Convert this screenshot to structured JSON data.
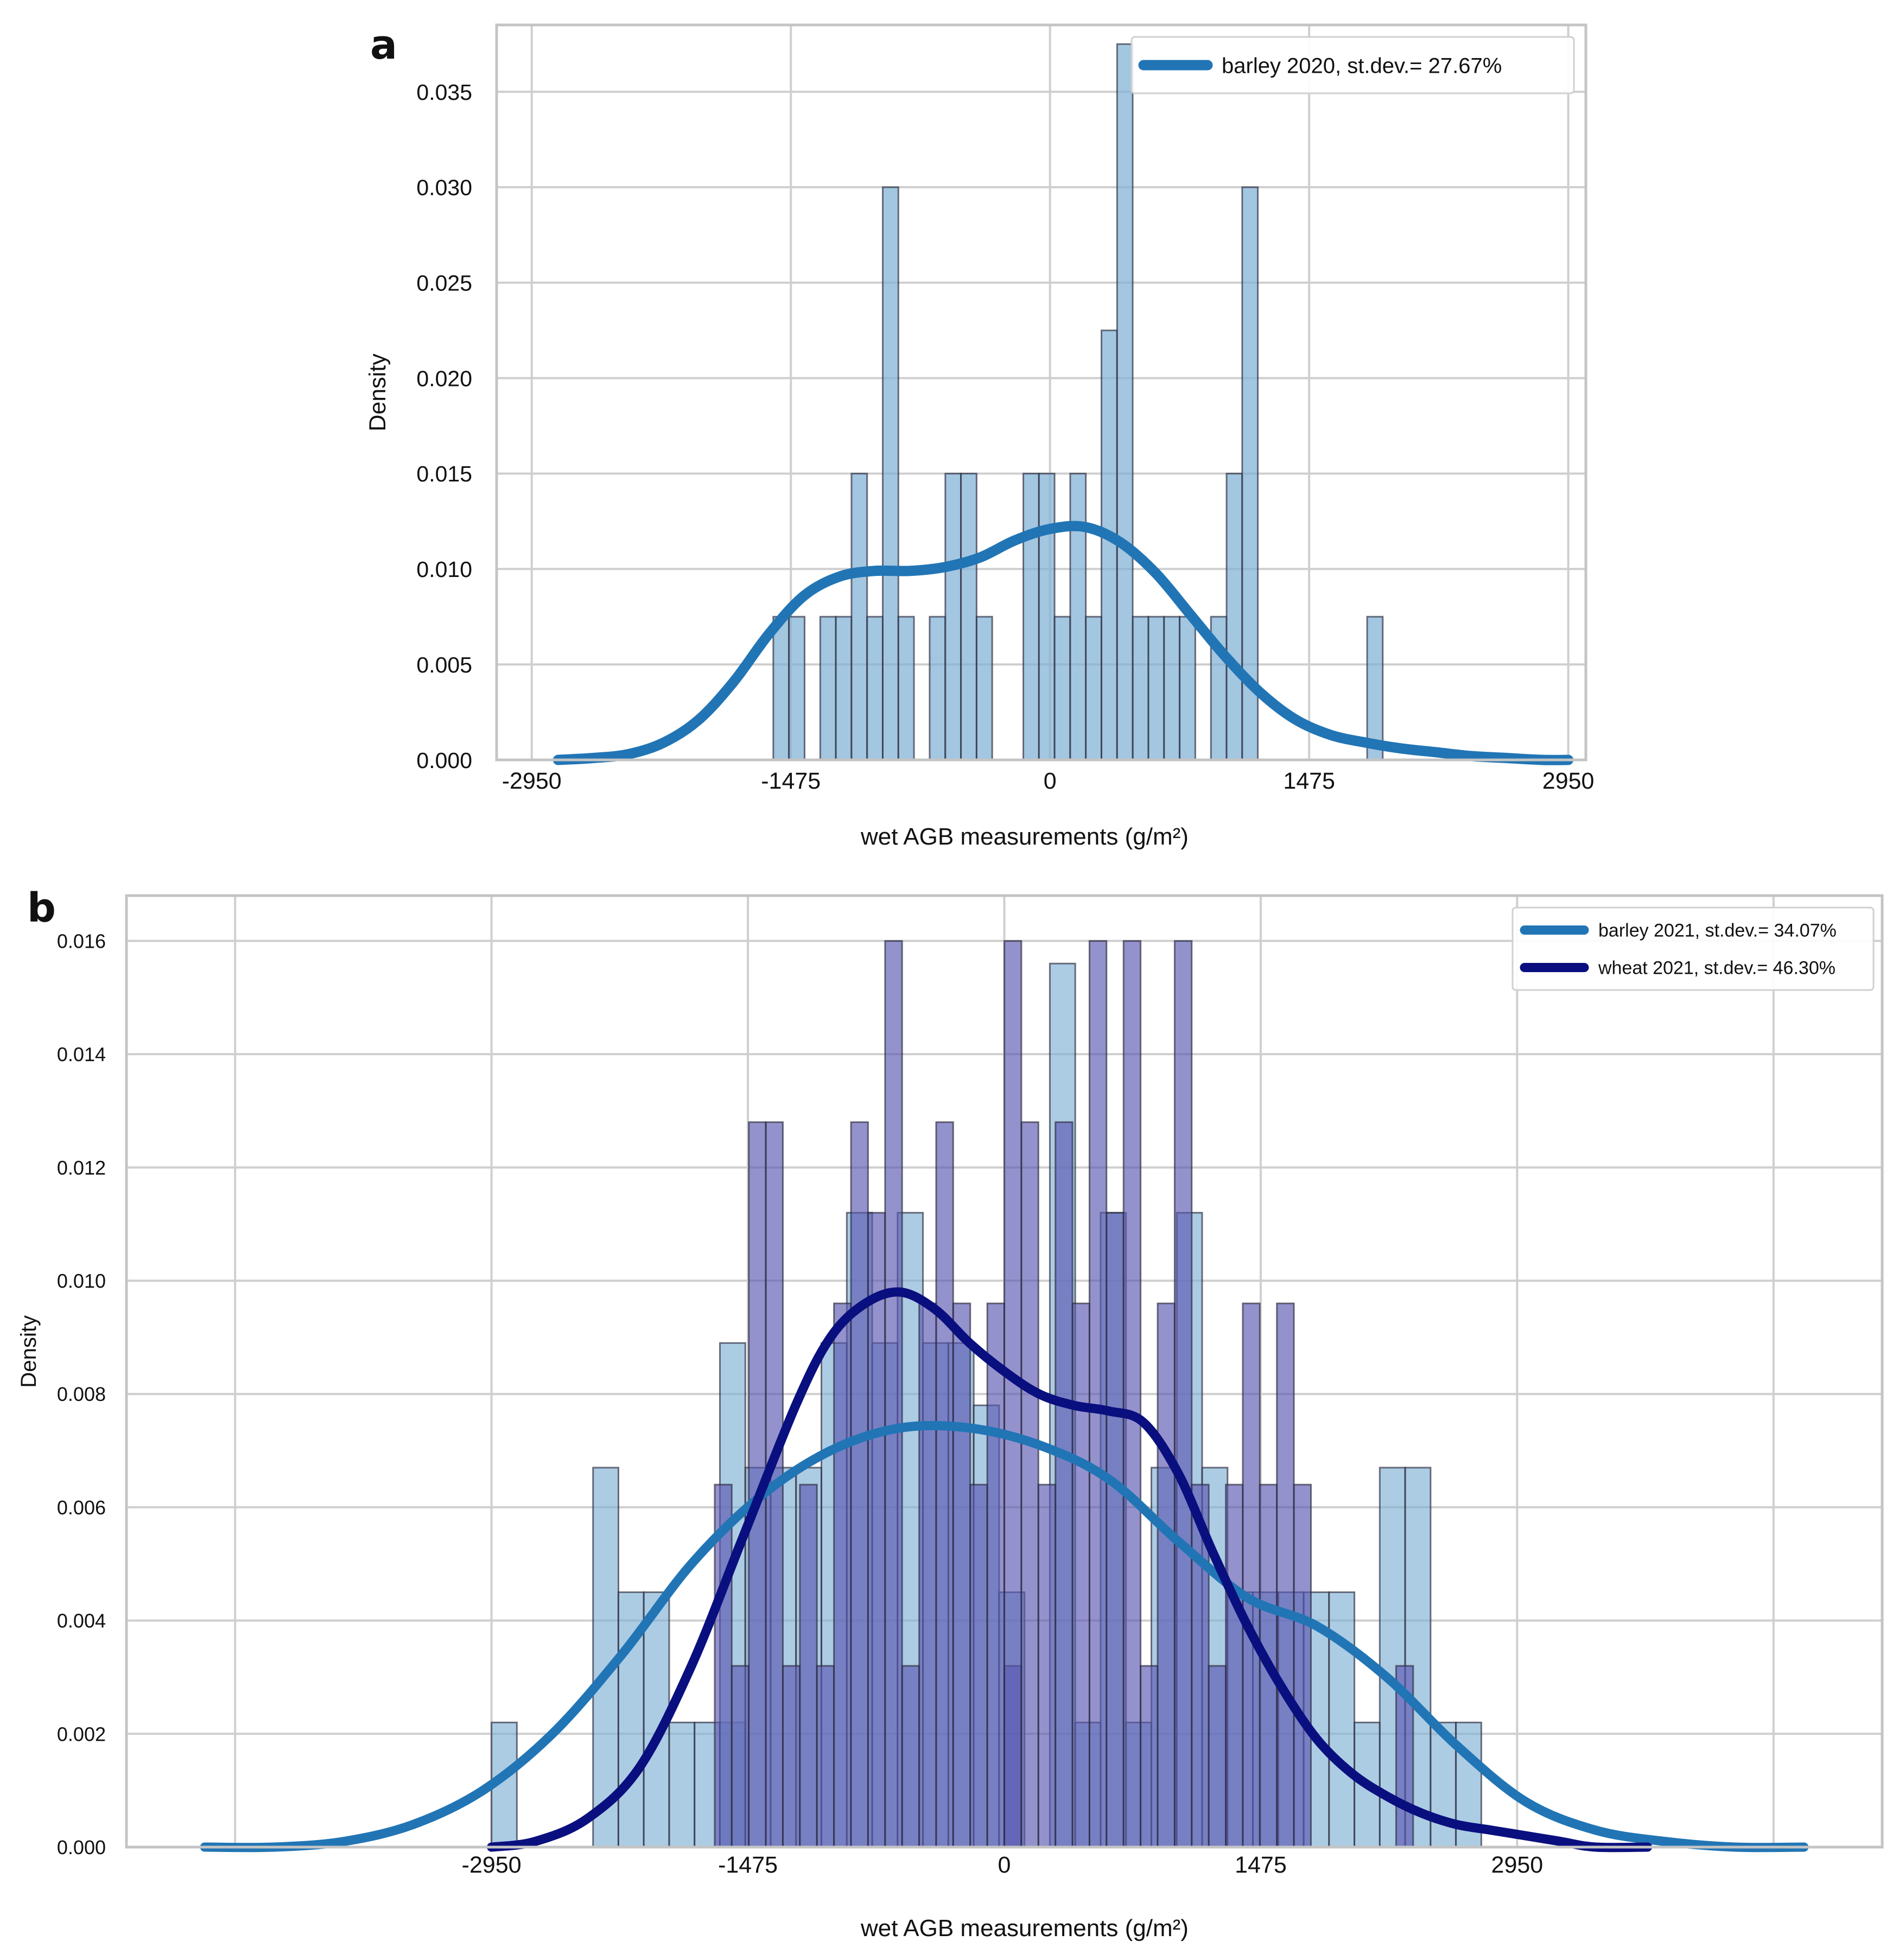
{
  "chart_data": [
    {
      "type": "histogram+kde",
      "panel_label": "a",
      "xlabel": "wet AGB measurements (g/m²)",
      "ylabel": "Density",
      "xlim": [
        -3150,
        3050
      ],
      "ylim": [
        0,
        0.0385
      ],
      "x_ticks": [
        -2950,
        -1475,
        0,
        1475,
        2950
      ],
      "x_tick_labels": [
        "-2950",
        "-1475",
        "0",
        "1475",
        "2950"
      ],
      "y_ticks": [
        0.0,
        0.005,
        0.01,
        0.015,
        0.02,
        0.025,
        0.03,
        0.035
      ],
      "y_tick_labels": [
        "0.000",
        "0.005",
        "0.010",
        "0.015",
        "0.020",
        "0.025",
        "0.030",
        "0.035"
      ],
      "legend_position": "top-right",
      "series": [
        {
          "name": "barley 2020, st.dev.= 27.67%",
          "color": "#2175b5",
          "bin_width": 89,
          "bins": [
            [
              -1575,
              0.0075
            ],
            [
              -1486,
              0.0075
            ],
            [
              -1308,
              0.0075
            ],
            [
              -1219,
              0.0075
            ],
            [
              -1130,
              0.015
            ],
            [
              -1041,
              0.0075
            ],
            [
              -952,
              0.03
            ],
            [
              -863,
              0.0075
            ],
            [
              -685,
              0.0075
            ],
            [
              -596,
              0.015
            ],
            [
              -507,
              0.015
            ],
            [
              -418,
              0.0075
            ],
            [
              -152,
              0.015
            ],
            [
              -63,
              0.015
            ],
            [
              26,
              0.0075
            ],
            [
              115,
              0.015
            ],
            [
              204,
              0.0075
            ],
            [
              293,
              0.0225
            ],
            [
              382,
              0.0375
            ],
            [
              471,
              0.0075
            ],
            [
              560,
              0.0075
            ],
            [
              649,
              0.0075
            ],
            [
              738,
              0.0075
            ],
            [
              916,
              0.0075
            ],
            [
              1005,
              0.015
            ],
            [
              1094,
              0.03
            ],
            [
              1805,
              0.0075
            ]
          ],
          "kde_x": [
            -2800,
            -2600,
            -2400,
            -2200,
            -2000,
            -1800,
            -1600,
            -1400,
            -1200,
            -1000,
            -800,
            -600,
            -400,
            -200,
            0,
            200,
            400,
            600,
            800,
            1000,
            1200,
            1400,
            1600,
            1800,
            2000,
            2200,
            2400,
            2600,
            2800,
            2950
          ],
          "kde_y": [
            0.0,
            0.0001,
            0.0003,
            0.0009,
            0.0021,
            0.0041,
            0.0066,
            0.0086,
            0.0096,
            0.0099,
            0.0099,
            0.0101,
            0.0106,
            0.0115,
            0.0121,
            0.0122,
            0.0114,
            0.0098,
            0.0076,
            0.0054,
            0.0035,
            0.0021,
            0.0013,
            0.0009,
            0.0006,
            0.0004,
            0.0002,
            0.0001,
            0.0,
            0.0
          ]
        }
      ]
    },
    {
      "type": "histogram+kde",
      "panel_label": "b",
      "xlabel": "wet AGB measurements (g/m²)",
      "ylabel": "Density",
      "xlim": [
        -5050,
        5050
      ],
      "ylim": [
        0,
        0.0168
      ],
      "x_ticks": [
        -2950,
        -1475,
        0,
        1475,
        2950
      ],
      "x_tick_labels": [
        "-2950",
        "-1475",
        "0",
        "1475",
        "2950"
      ],
      "y_ticks": [
        0.0,
        0.002,
        0.004,
        0.006,
        0.008,
        0.01,
        0.012,
        0.014,
        0.016
      ],
      "y_tick_labels": [
        "0.000",
        "0.002",
        "0.004",
        "0.006",
        "0.008",
        "0.010",
        "0.012",
        "0.014",
        "0.016"
      ],
      "extra_gridlines_x": [
        -4425,
        4425
      ],
      "legend_position": "top-right",
      "series": [
        {
          "name": "barley 2021, st.dev.= 34.07%",
          "color": "#2175b5",
          "bin_width": 146,
          "bins": [
            [
              -2950,
              0.0022
            ],
            [
              -2366,
              0.0067
            ],
            [
              -2220,
              0.0045
            ],
            [
              -2074,
              0.0045
            ],
            [
              -1928,
              0.0022
            ],
            [
              -1782,
              0.0022
            ],
            [
              -1636,
              0.0022
            ],
            [
              -1636,
              0.0089
            ],
            [
              -1490,
              0.0067
            ],
            [
              -1344,
              0.0067
            ],
            [
              -1198,
              0.0067
            ],
            [
              -1052,
              0.0089
            ],
            [
              -906,
              0.0112
            ],
            [
              -760,
              0.0089
            ],
            [
              -614,
              0.0112
            ],
            [
              -468,
              0.0089
            ],
            [
              -322,
              0.0089
            ],
            [
              -176,
              0.0078
            ],
            [
              -30,
              0.0045
            ],
            [
              262,
              0.0156
            ],
            [
              408,
              0.0022
            ],
            [
              554,
              0.0112
            ],
            [
              700,
              0.0022
            ],
            [
              846,
              0.0067
            ],
            [
              992,
              0.0112
            ],
            [
              1138,
              0.0067
            ],
            [
              1284,
              0.0045
            ],
            [
              1430,
              0.0045
            ],
            [
              1576,
              0.0045
            ],
            [
              1722,
              0.0045
            ],
            [
              1868,
              0.0045
            ],
            [
              2014,
              0.0022
            ],
            [
              2160,
              0.0067
            ],
            [
              2306,
              0.0067
            ],
            [
              2452,
              0.0022
            ],
            [
              2598,
              0.0022
            ]
          ],
          "kde_x": [
            -4600,
            -4200,
            -3800,
            -3400,
            -3000,
            -2600,
            -2200,
            -1800,
            -1400,
            -1000,
            -600,
            -200,
            200,
            600,
            1000,
            1400,
            1800,
            2200,
            2600,
            3000,
            3400,
            3800,
            4200,
            4600
          ],
          "kde_y": [
            0.0,
            0.0,
            0.0001,
            0.0004,
            0.001,
            0.002,
            0.0034,
            0.005,
            0.0062,
            0.007,
            0.0074,
            0.0074,
            0.0071,
            0.0065,
            0.0054,
            0.0044,
            0.0039,
            0.003,
            0.0018,
            0.0008,
            0.0003,
            0.0001,
            0.0,
            0.0
          ]
        },
        {
          "name": "wheat 2021, st.dev.= 46.30%",
          "color": "#0a0f7f",
          "bin_width": 98,
          "bins": [
            [
              -1666,
              0.0064
            ],
            [
              -1568,
              0.0032
            ],
            [
              -1470,
              0.0128
            ],
            [
              -1372,
              0.0128
            ],
            [
              -1274,
              0.0032
            ],
            [
              -1176,
              0.0064
            ],
            [
              -1078,
              0.0032
            ],
            [
              -980,
              0.0096
            ],
            [
              -882,
              0.0128
            ],
            [
              -784,
              0.0112
            ],
            [
              -686,
              0.016
            ],
            [
              -588,
              0.0032
            ],
            [
              -490,
              0.0096
            ],
            [
              -392,
              0.0128
            ],
            [
              -294,
              0.0096
            ],
            [
              -196,
              0.0064
            ],
            [
              -98,
              0.0096
            ],
            [
              0,
              0.0032
            ],
            [
              0,
              0.016
            ],
            [
              98,
              0.0128
            ],
            [
              196,
              0.0064
            ],
            [
              294,
              0.0128
            ],
            [
              392,
              0.0096
            ],
            [
              490,
              0.016
            ],
            [
              588,
              0.0112
            ],
            [
              686,
              0.016
            ],
            [
              784,
              0.0032
            ],
            [
              882,
              0.0096
            ],
            [
              980,
              0.016
            ],
            [
              1078,
              0.0064
            ],
            [
              1176,
              0.0032
            ],
            [
              1274,
              0.0064
            ],
            [
              1372,
              0.0096
            ],
            [
              1470,
              0.0064
            ],
            [
              1568,
              0.0096
            ],
            [
              1666,
              0.0064
            ],
            [
              2254,
              0.0032
            ]
          ],
          "kde_x": [
            -2950,
            -2700,
            -2400,
            -2100,
            -1800,
            -1500,
            -1200,
            -1000,
            -800,
            -600,
            -400,
            -200,
            0,
            200,
            400,
            600,
            800,
            1000,
            1200,
            1400,
            1600,
            1800,
            2000,
            2200,
            2400,
            2600,
            2800,
            3000,
            3200,
            3400,
            3700
          ],
          "kde_y": [
            0.0,
            0.0001,
            0.0005,
            0.0014,
            0.0032,
            0.0055,
            0.0078,
            0.009,
            0.0096,
            0.0098,
            0.0095,
            0.0089,
            0.0084,
            0.008,
            0.0078,
            0.0077,
            0.0075,
            0.0066,
            0.0052,
            0.0039,
            0.0028,
            0.0019,
            0.0013,
            0.0009,
            0.0006,
            0.0004,
            0.0003,
            0.0002,
            0.0001,
            0.0,
            0.0
          ]
        }
      ]
    }
  ]
}
